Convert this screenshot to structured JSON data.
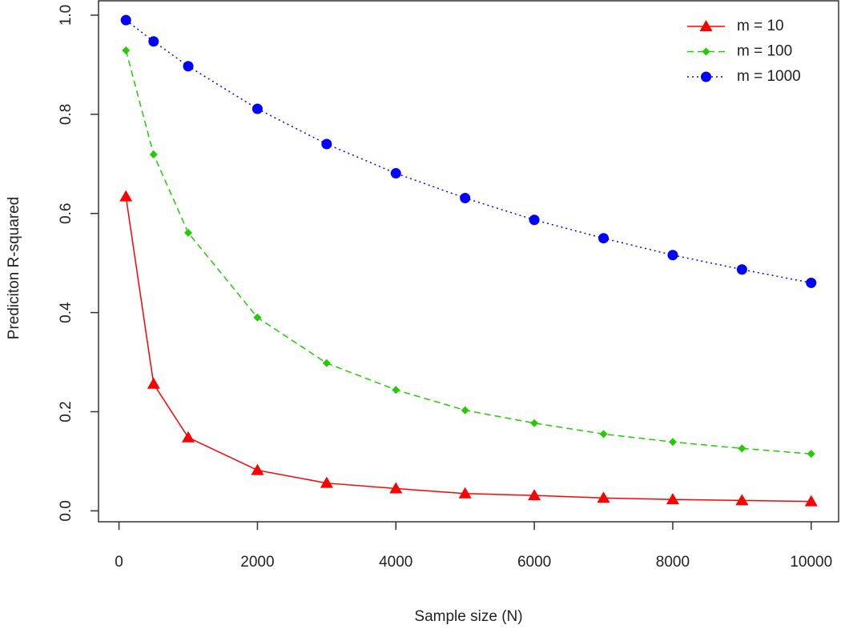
{
  "chart_data": {
    "type": "line",
    "x_label": "Sample size (N)",
    "y_label": "Prediciton R-squared",
    "x": [
      100,
      500,
      1000,
      2000,
      3000,
      4000,
      5000,
      6000,
      7000,
      8000,
      9000,
      10000
    ],
    "series": [
      {
        "name": "m = 10",
        "color": "#ff0000",
        "linestyle": "solid",
        "marker": "triangle",
        "values": [
          0.634,
          0.256,
          0.148,
          0.082,
          0.056,
          0.045,
          0.035,
          0.031,
          0.026,
          0.023,
          0.021,
          0.019
        ]
      },
      {
        "name": "m = 100",
        "color": "#22cc00",
        "linestyle": "dashed",
        "marker": "diamond",
        "values": [
          0.929,
          0.719,
          0.561,
          0.39,
          0.298,
          0.244,
          0.203,
          0.177,
          0.155,
          0.139,
          0.126,
          0.115
        ]
      },
      {
        "name": "m = 1000",
        "color": "#0000ff",
        "linestyle": "dotted",
        "marker": "circle",
        "values": [
          0.99,
          0.947,
          0.897,
          0.811,
          0.74,
          0.681,
          0.631,
          0.587,
          0.55,
          0.516,
          0.487,
          0.46
        ]
      }
    ],
    "xlim": [
      -296,
      10396
    ],
    "ylim": [
      -0.022,
      1.029
    ],
    "xticks": [
      0,
      2000,
      4000,
      6000,
      8000,
      10000
    ],
    "yticks": [
      {
        "value": 0,
        "label": "0.0"
      },
      0.2,
      0.4,
      0.6,
      0.8,
      {
        "value": 1,
        "label": "1.0"
      }
    ],
    "legend": "top-right",
    "grid": false
  }
}
